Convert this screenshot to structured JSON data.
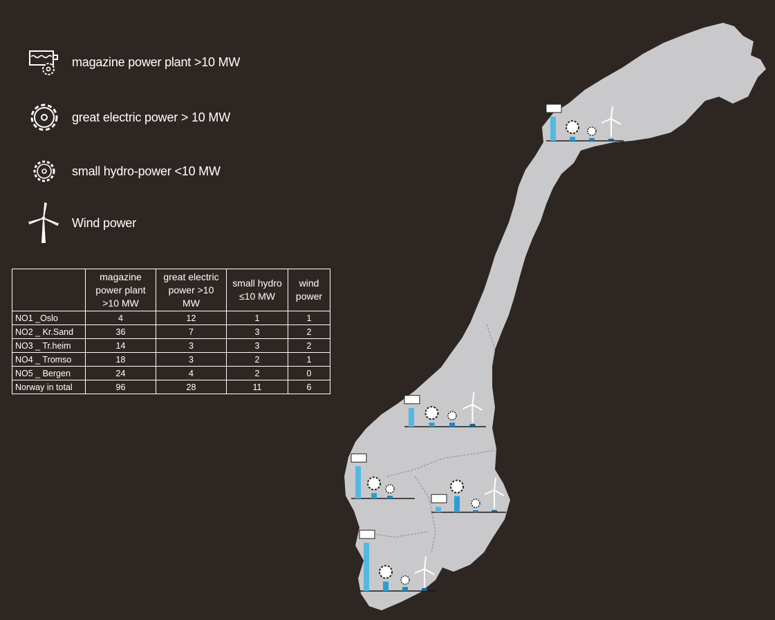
{
  "legend": [
    {
      "icon": "magazine-power-plant-icon",
      "label": "magazine power plant >10 MW"
    },
    {
      "icon": "great-electric-power-icon",
      "label": "great electric power > 10 MW"
    },
    {
      "icon": "small-hydro-power-icon",
      "label": "small hydro-power <10 MW"
    },
    {
      "icon": "wind-power-icon",
      "label": "Wind power"
    }
  ],
  "table": {
    "headers": [
      "",
      "magazine power plant >10 MW",
      "great electric power >10 MW",
      "small hydro ≤10 MW",
      "wind power"
    ],
    "rows": [
      {
        "name": "NO1 _Oslo",
        "values": [
          "4",
          "12",
          "1",
          "1"
        ]
      },
      {
        "name": "NO2 _ Kr.Sand",
        "values": [
          "36",
          "7",
          "3",
          "2"
        ]
      },
      {
        "name": "NO3 _ Tr.heim",
        "values": [
          "14",
          "3",
          "3",
          "2"
        ]
      },
      {
        "name": "NO4 _ Tromso",
        "values": [
          "18",
          "3",
          "2",
          "1"
        ]
      },
      {
        "name": "NO5 _ Bergen",
        "values": [
          "24",
          "4",
          "2",
          "0"
        ]
      },
      {
        "name": "Norway in total",
        "values": [
          "96",
          "28",
          "11",
          "6"
        ]
      }
    ]
  },
  "colors": {
    "background": "#2e2622",
    "land": "#c9c9cb",
    "magazine_bar": "#55b8e3",
    "great_bar": "#2a9fd4",
    "small_bar": "#1f86bf",
    "wind_bar": "#175f8f"
  },
  "regions": [
    {
      "name": "NO4 _ Tromso",
      "values": [
        18,
        3,
        2,
        1
      ]
    },
    {
      "name": "NO3 _ Tr.heim",
      "values": [
        14,
        3,
        3,
        2
      ]
    },
    {
      "name": "NO5 _ Bergen",
      "values": [
        24,
        4,
        2,
        0
      ]
    },
    {
      "name": "NO1 _Oslo",
      "values": [
        4,
        12,
        1,
        1
      ]
    },
    {
      "name": "NO2 _ Kr.Sand",
      "values": [
        36,
        7,
        3,
        2
      ]
    }
  ]
}
